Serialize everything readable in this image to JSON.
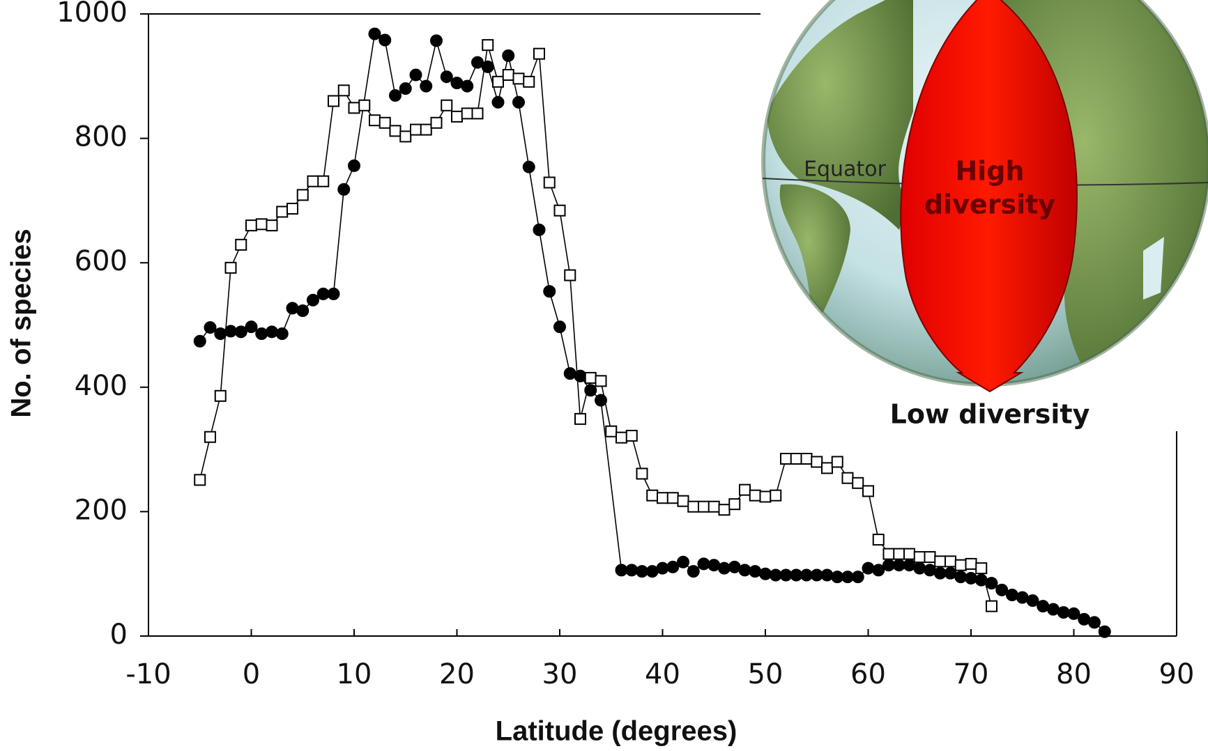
{
  "chart_data": {
    "type": "line",
    "xlabel": "Latitude (degrees)",
    "ylabel": "No. of species",
    "xlim": [
      -10,
      90
    ],
    "ylim": [
      0,
      1000
    ],
    "xticks": [
      -10,
      0,
      10,
      20,
      30,
      40,
      50,
      60,
      70,
      80,
      90
    ],
    "yticks": [
      0,
      200,
      400,
      600,
      800,
      1000
    ],
    "series": [
      {
        "color": "#000000",
        "marker": "circle",
        "marker_fill": "#000000",
        "x": [
          -5,
          -4,
          -3,
          -2,
          -1,
          0,
          1,
          2,
          3,
          4,
          5,
          6,
          7,
          8,
          9,
          10,
          12,
          13,
          14,
          15,
          16,
          17,
          18,
          19,
          20,
          21,
          22,
          23,
          24,
          25,
          26,
          27,
          28,
          29,
          30,
          31,
          32,
          33,
          34,
          36,
          37,
          38,
          39,
          40,
          41,
          42,
          43,
          44,
          45,
          46,
          47,
          48,
          49,
          50,
          51,
          52,
          53,
          54,
          55,
          56,
          57,
          58,
          59,
          60,
          61,
          62,
          63,
          64,
          65,
          66,
          67,
          68,
          69,
          70,
          71,
          72,
          73,
          74,
          75,
          76,
          77,
          78,
          79,
          80,
          81,
          82,
          83
        ],
        "values": [
          474,
          496,
          486,
          490,
          489,
          497,
          486,
          489,
          486,
          527,
          523,
          540,
          550,
          550,
          718,
          756,
          968,
          958,
          869,
          880,
          902,
          884,
          957,
          899,
          889,
          884,
          922,
          915,
          858,
          933,
          858,
          754,
          653,
          554,
          497,
          422,
          418,
          395,
          379,
          106,
          106,
          104,
          104,
          109,
          111,
          119,
          104,
          116,
          114,
          109,
          111,
          106,
          104,
          100,
          98,
          98,
          98,
          98,
          98,
          98,
          95,
          95,
          95,
          109,
          106,
          114,
          114,
          114,
          109,
          106,
          101,
          101,
          95,
          93,
          90,
          85,
          74,
          66,
          62,
          57,
          48,
          43,
          38,
          36,
          27,
          22,
          7
        ]
      },
      {
        "color": "#000000",
        "marker": "square",
        "marker_fill": "#ffffff",
        "x": [
          -5,
          -4,
          -3,
          -2,
          -1,
          0,
          1,
          2,
          3,
          4,
          5,
          6,
          7,
          8,
          9,
          10,
          11,
          12,
          13,
          14,
          15,
          16,
          17,
          18,
          19,
          20,
          21,
          22,
          23,
          24,
          25,
          26,
          27,
          28,
          29,
          30,
          31,
          32,
          33,
          34,
          35,
          36,
          37,
          38,
          39,
          40,
          41,
          42,
          43,
          44,
          45,
          46,
          47,
          48,
          49,
          50,
          51,
          52,
          53,
          54,
          55,
          56,
          57,
          58,
          59,
          60,
          61,
          62,
          63,
          64,
          65,
          66,
          67,
          68,
          69,
          70,
          71,
          72
        ],
        "values": [
          251,
          320,
          386,
          592,
          629,
          660,
          662,
          660,
          682,
          687,
          709,
          731,
          731,
          860,
          877,
          849,
          853,
          829,
          825,
          812,
          803,
          814,
          814,
          825,
          853,
          835,
          840,
          840,
          950,
          891,
          902,
          896,
          891,
          936,
          729,
          684,
          580,
          349,
          415,
          410,
          329,
          319,
          322,
          261,
          226,
          222,
          222,
          217,
          208,
          208,
          208,
          203,
          212,
          235,
          226,
          224,
          226,
          285,
          285,
          285,
          280,
          270,
          280,
          254,
          246,
          233,
          155,
          132,
          132,
          132,
          127,
          127,
          120,
          120,
          114,
          116,
          109,
          48
        ]
      }
    ],
    "inset": {
      "equator": "Equator",
      "high": [
        "High",
        "diversity"
      ],
      "low": "Low diversity"
    }
  }
}
